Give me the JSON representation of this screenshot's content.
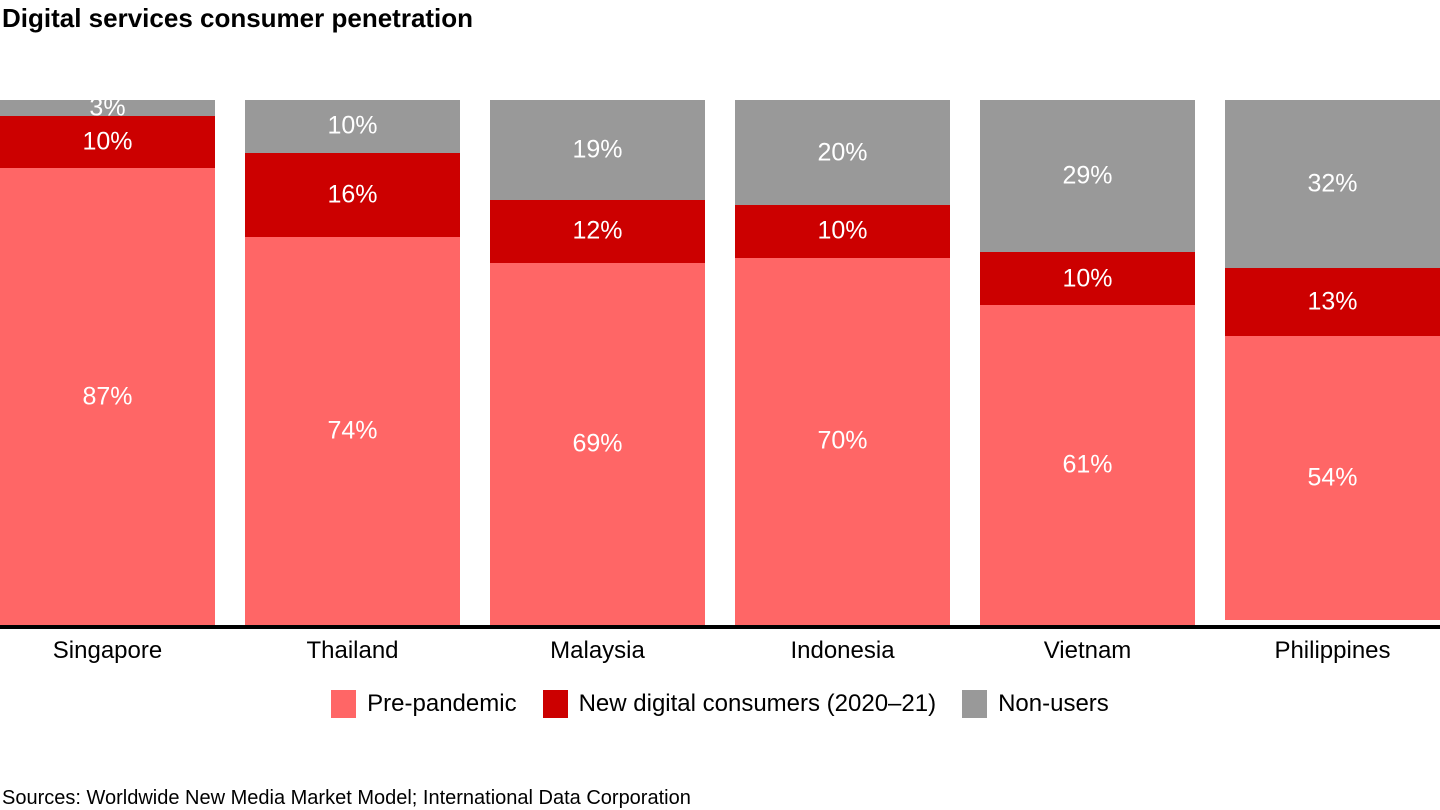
{
  "title": "Digital services consumer penetration",
  "source_note": "Sources: Worldwide New Media Market Model; International Data Corporation",
  "colors": {
    "pre_pandemic": "#ff6666",
    "new_consumers": "#cc0000",
    "non_users": "#999999",
    "axis": "#000000",
    "label_text": "#ffffff"
  },
  "legend": [
    {
      "label": "Pre-pandemic",
      "color_key": "pre_pandemic"
    },
    {
      "label": "New digital consumers (2020–21)",
      "color_key": "new_consumers"
    },
    {
      "label": "Non-users",
      "color_key": "non_users"
    }
  ],
  "chart_data": {
    "type": "bar",
    "stacked": true,
    "orientation": "vertical",
    "unit": "%",
    "title": "Digital services consumer penetration",
    "categories": [
      "Singapore",
      "Thailand",
      "Malaysia",
      "Indonesia",
      "Vietnam",
      "Philippines"
    ],
    "series": [
      {
        "name": "Pre-pandemic",
        "color_key": "pre_pandemic",
        "values": [
          87,
          74,
          69,
          70,
          61,
          54
        ]
      },
      {
        "name": "New digital consumers (2020–21)",
        "color_key": "new_consumers",
        "values": [
          10,
          16,
          12,
          10,
          10,
          13
        ]
      },
      {
        "name": "Non-users",
        "color_key": "non_users",
        "values": [
          3,
          10,
          19,
          20,
          29,
          32
        ]
      }
    ],
    "stack_order_top_to_bottom": [
      "Non-users",
      "New digital consumers (2020–21)",
      "Pre-pandemic"
    ],
    "ylim": [
      0,
      100
    ],
    "grid": false,
    "value_labels": "inside, white, suffixed with %",
    "legend_position": "bottom-center"
  }
}
